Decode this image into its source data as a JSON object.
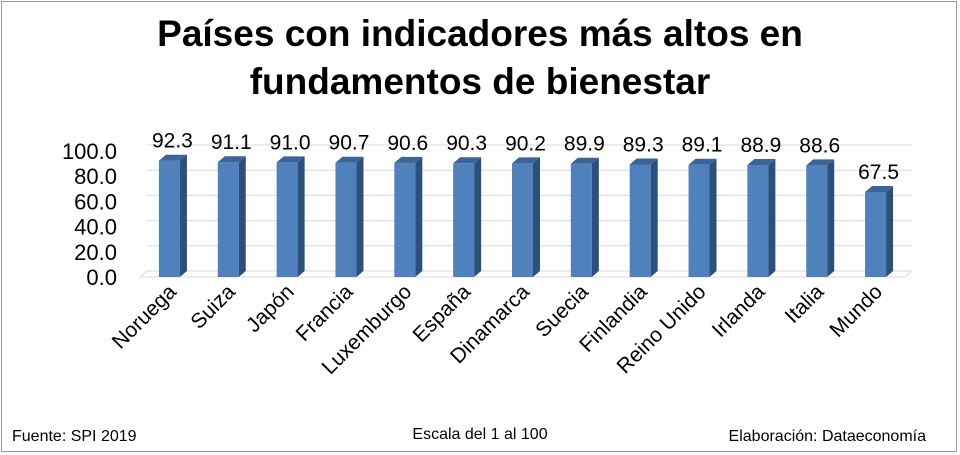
{
  "chart_data": {
    "type": "bar",
    "title_lines": [
      "Países con indicadores más altos en",
      "fundamentos de bienestar"
    ],
    "categories": [
      "Noruega",
      "Suiza",
      "Japón",
      "Francia",
      "Luxemburgo",
      "España",
      "Dinamarca",
      "Suecia",
      "Finlandia",
      "Reino Unido",
      "Irlanda",
      "Italia",
      "Mundo"
    ],
    "values": [
      92.3,
      91.1,
      91.0,
      90.7,
      90.6,
      90.3,
      90.2,
      89.9,
      89.3,
      89.1,
      88.9,
      88.6,
      67.5
    ],
    "y_ticks": [
      "0.0",
      "20.0",
      "40.0",
      "60.0",
      "80.0",
      "100.0"
    ],
    "ylim": [
      0,
      100
    ],
    "grid": true,
    "bar_color": "#4f81bd",
    "bar_side_color": "#2c4f7c",
    "bar_top_color": "#3a6596",
    "style": "3d-bar"
  },
  "footer": {
    "source": "Fuente: SPI 2019",
    "scale": "Escala del 1 al 100",
    "credit": "Elaboración: Dataeconomía"
  }
}
